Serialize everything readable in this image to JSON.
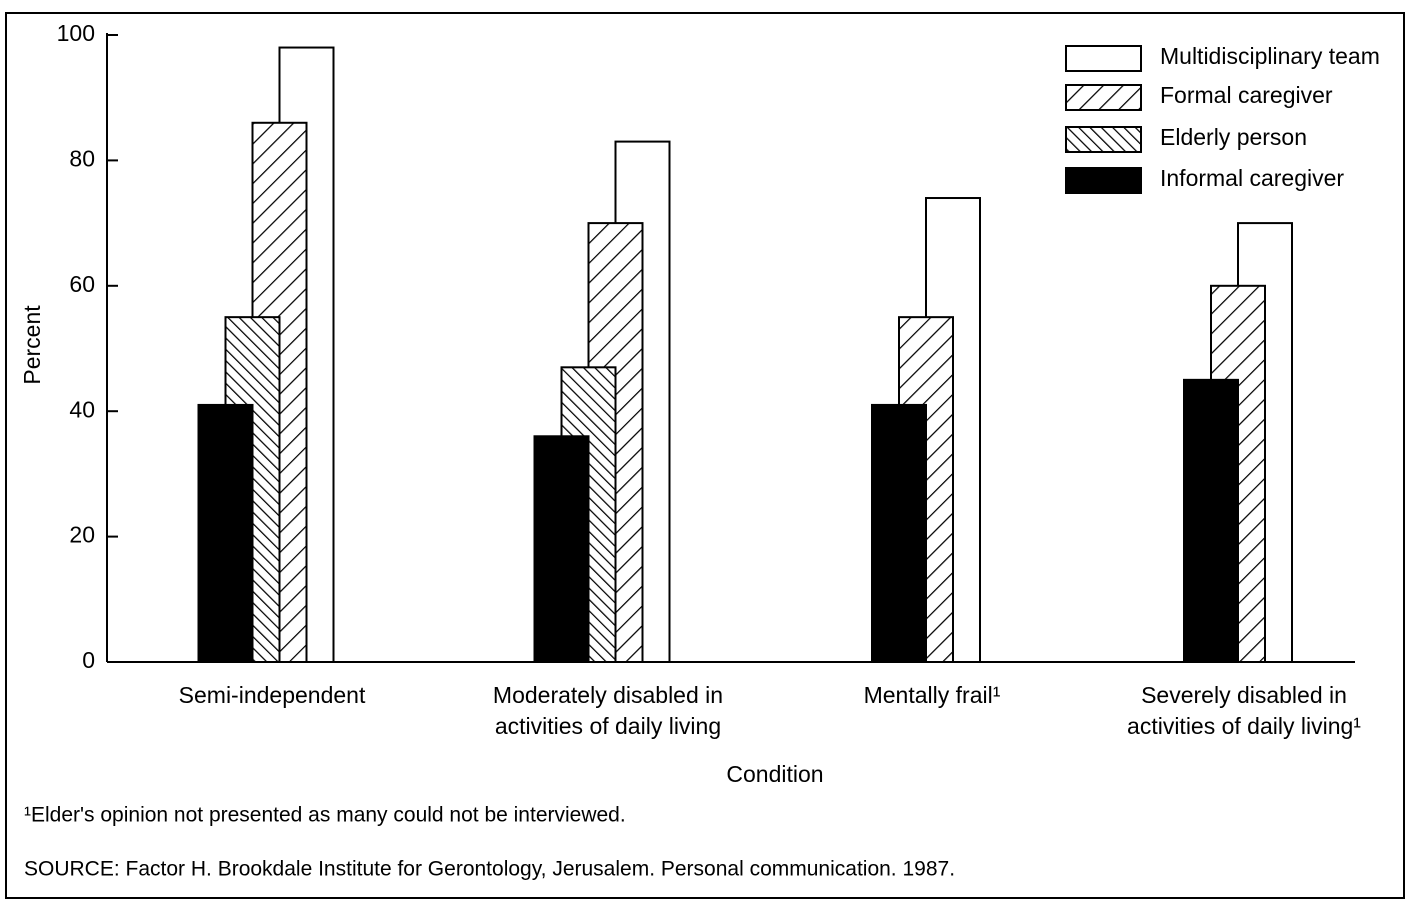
{
  "chart_data": {
    "type": "bar",
    "x_label": "Condition",
    "y_label": "Percent",
    "categories": [
      "Semi-independent",
      "Moderately disabled in activities of daily living",
      "Mentally frail¹",
      "Severely disabled in activities of daily living¹"
    ],
    "series": [
      {
        "name": "Multidisciplinary team",
        "color": "#ffffff",
        "pattern": "none",
        "values": [
          98,
          83,
          74,
          70
        ]
      },
      {
        "name": "Formal caregiver",
        "color": "#ffffff",
        "pattern": "forward-hatch",
        "values": [
          86,
          70,
          55,
          60
        ]
      },
      {
        "name": "Elderly person",
        "color": "#ffffff",
        "pattern": "back-hatch",
        "values": [
          55,
          47,
          null,
          null
        ]
      },
      {
        "name": "Informal caregiver",
        "color": "#000000",
        "pattern": "none",
        "values": [
          41,
          36,
          41,
          45
        ]
      }
    ],
    "ylim": [
      0,
      100
    ],
    "yticks": [
      0,
      20,
      40,
      60,
      80,
      100
    ],
    "legend": "upper right",
    "footnote": "¹Elder's opinion not presented as many could not be  interviewed.",
    "source": "SOURCE: Factor H. Brookdale Institute for Gerontology, Jerusalem. Personal communication. 1987."
  }
}
